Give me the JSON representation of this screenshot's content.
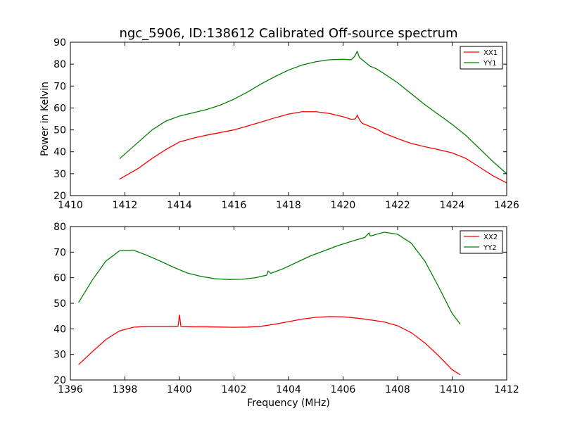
{
  "chart_data": [
    {
      "type": "line",
      "title": "ngc_5906, ID:138612 Calibrated Off-source spectrum",
      "xlabel": "",
      "ylabel": "Power in Kelvin",
      "xlim": [
        1410,
        1426
      ],
      "ylim": [
        20,
        90
      ],
      "xticks": [
        1410,
        1412,
        1414,
        1416,
        1418,
        1420,
        1422,
        1424,
        1426
      ],
      "yticks": [
        20,
        30,
        40,
        50,
        60,
        70,
        80,
        90
      ],
      "legend_position": "top-right",
      "series": [
        {
          "name": "XX1",
          "color": "#ff0000",
          "points": [
            [
              1411.8,
              27.5
            ],
            [
              1412.5,
              32.5
            ],
            [
              1413.0,
              37.0
            ],
            [
              1413.5,
              41.0
            ],
            [
              1414.0,
              44.5
            ],
            [
              1414.5,
              46.2
            ],
            [
              1415.0,
              47.6
            ],
            [
              1415.5,
              48.8
            ],
            [
              1416.0,
              50.0
            ],
            [
              1416.5,
              51.8
            ],
            [
              1417.0,
              53.6
            ],
            [
              1417.5,
              55.5
            ],
            [
              1418.0,
              57.2
            ],
            [
              1418.5,
              58.3
            ],
            [
              1419.0,
              58.3
            ],
            [
              1419.5,
              57.5
            ],
            [
              1420.0,
              56.0
            ],
            [
              1420.3,
              54.8
            ],
            [
              1420.45,
              55.0
            ],
            [
              1420.52,
              56.7
            ],
            [
              1420.6,
              54.6
            ],
            [
              1420.7,
              53.0
            ],
            [
              1420.9,
              52.0
            ],
            [
              1421.1,
              51.0
            ],
            [
              1421.2,
              50.6
            ],
            [
              1421.5,
              48.5
            ],
            [
              1422.0,
              46.0
            ],
            [
              1422.5,
              43.8
            ],
            [
              1423.0,
              42.3
            ],
            [
              1423.5,
              41.0
            ],
            [
              1424.0,
              39.5
            ],
            [
              1424.5,
              37.0
            ],
            [
              1425.0,
              33.0
            ],
            [
              1425.5,
              29.0
            ],
            [
              1426.0,
              25.8
            ]
          ]
        },
        {
          "name": "YY1",
          "color": "#008000",
          "points": [
            [
              1411.8,
              36.8
            ],
            [
              1412.5,
              44.5
            ],
            [
              1413.0,
              50.0
            ],
            [
              1413.5,
              54.0
            ],
            [
              1414.0,
              56.3
            ],
            [
              1414.5,
              57.8
            ],
            [
              1415.0,
              59.3
            ],
            [
              1415.5,
              61.3
            ],
            [
              1416.0,
              64.0
            ],
            [
              1416.5,
              67.3
            ],
            [
              1417.0,
              71.0
            ],
            [
              1417.5,
              74.3
            ],
            [
              1418.0,
              77.3
            ],
            [
              1418.5,
              79.6
            ],
            [
              1419.0,
              81.1
            ],
            [
              1419.5,
              82.0
            ],
            [
              1420.0,
              82.2
            ],
            [
              1420.3,
              82.0
            ],
            [
              1420.42,
              83.5
            ],
            [
              1420.52,
              85.8
            ],
            [
              1420.6,
              83.0
            ],
            [
              1420.8,
              81.0
            ],
            [
              1421.0,
              79.0
            ],
            [
              1421.1,
              78.5
            ],
            [
              1421.2,
              78.0
            ],
            [
              1421.4,
              76.5
            ],
            [
              1422.0,
              71.5
            ],
            [
              1422.5,
              66.5
            ],
            [
              1423.0,
              61.5
            ],
            [
              1423.5,
              57.0
            ],
            [
              1424.0,
              52.5
            ],
            [
              1424.5,
              47.5
            ],
            [
              1425.0,
              41.5
            ],
            [
              1425.5,
              35.5
            ],
            [
              1426.0,
              30.0
            ]
          ]
        }
      ]
    },
    {
      "type": "line",
      "title": "",
      "xlabel": "Frequency (MHz)",
      "ylabel": "",
      "xlim": [
        1396,
        1412
      ],
      "ylim": [
        20,
        80
      ],
      "xticks": [
        1396,
        1398,
        1400,
        1402,
        1404,
        1406,
        1408,
        1410,
        1412
      ],
      "yticks": [
        20,
        30,
        40,
        50,
        60,
        70,
        80
      ],
      "legend_position": "top-right",
      "series": [
        {
          "name": "XX2",
          "color": "#ff0000",
          "points": [
            [
              1396.3,
              26.0
            ],
            [
              1396.8,
              31.0
            ],
            [
              1397.3,
              35.8
            ],
            [
              1397.8,
              39.2
            ],
            [
              1398.3,
              40.6
            ],
            [
              1398.8,
              41.0
            ],
            [
              1399.5,
              41.0
            ],
            [
              1399.95,
              41.0
            ],
            [
              1400.0,
              45.5
            ],
            [
              1400.05,
              41.0
            ],
            [
              1400.5,
              40.8
            ],
            [
              1401.0,
              40.8
            ],
            [
              1401.5,
              40.7
            ],
            [
              1402.0,
              40.6
            ],
            [
              1402.5,
              40.7
            ],
            [
              1403.0,
              41.0
            ],
            [
              1403.5,
              41.8
            ],
            [
              1404.0,
              42.8
            ],
            [
              1404.5,
              43.8
            ],
            [
              1405.0,
              44.5
            ],
            [
              1405.5,
              44.8
            ],
            [
              1406.0,
              44.7
            ],
            [
              1406.5,
              44.2
            ],
            [
              1407.0,
              43.5
            ],
            [
              1407.5,
              42.7
            ],
            [
              1408.0,
              41.2
            ],
            [
              1408.5,
              38.5
            ],
            [
              1409.0,
              34.5
            ],
            [
              1409.5,
              29.5
            ],
            [
              1410.0,
              24.0
            ],
            [
              1410.3,
              22.0
            ]
          ]
        },
        {
          "name": "YY2",
          "color": "#008000",
          "points": [
            [
              1396.3,
              50.3
            ],
            [
              1396.8,
              59.0
            ],
            [
              1397.3,
              66.5
            ],
            [
              1397.8,
              70.5
            ],
            [
              1398.3,
              70.8
            ],
            [
              1398.8,
              68.8
            ],
            [
              1399.3,
              66.5
            ],
            [
              1399.8,
              64.0
            ],
            [
              1400.3,
              61.8
            ],
            [
              1400.8,
              60.5
            ],
            [
              1401.3,
              59.6
            ],
            [
              1401.8,
              59.3
            ],
            [
              1402.3,
              59.4
            ],
            [
              1402.8,
              60.0
            ],
            [
              1403.2,
              61.0
            ],
            [
              1403.25,
              62.6
            ],
            [
              1403.35,
              61.7
            ],
            [
              1403.8,
              63.5
            ],
            [
              1404.3,
              66.0
            ],
            [
              1404.8,
              68.5
            ],
            [
              1405.3,
              70.5
            ],
            [
              1405.8,
              72.5
            ],
            [
              1406.3,
              74.2
            ],
            [
              1406.8,
              75.8
            ],
            [
              1406.95,
              77.5
            ],
            [
              1407.0,
              76.3
            ],
            [
              1407.5,
              77.8
            ],
            [
              1408.0,
              77.0
            ],
            [
              1408.5,
              73.5
            ],
            [
              1409.0,
              66.5
            ],
            [
              1409.5,
              56.5
            ],
            [
              1410.0,
              46.0
            ],
            [
              1410.3,
              41.8
            ]
          ]
        }
      ]
    }
  ]
}
